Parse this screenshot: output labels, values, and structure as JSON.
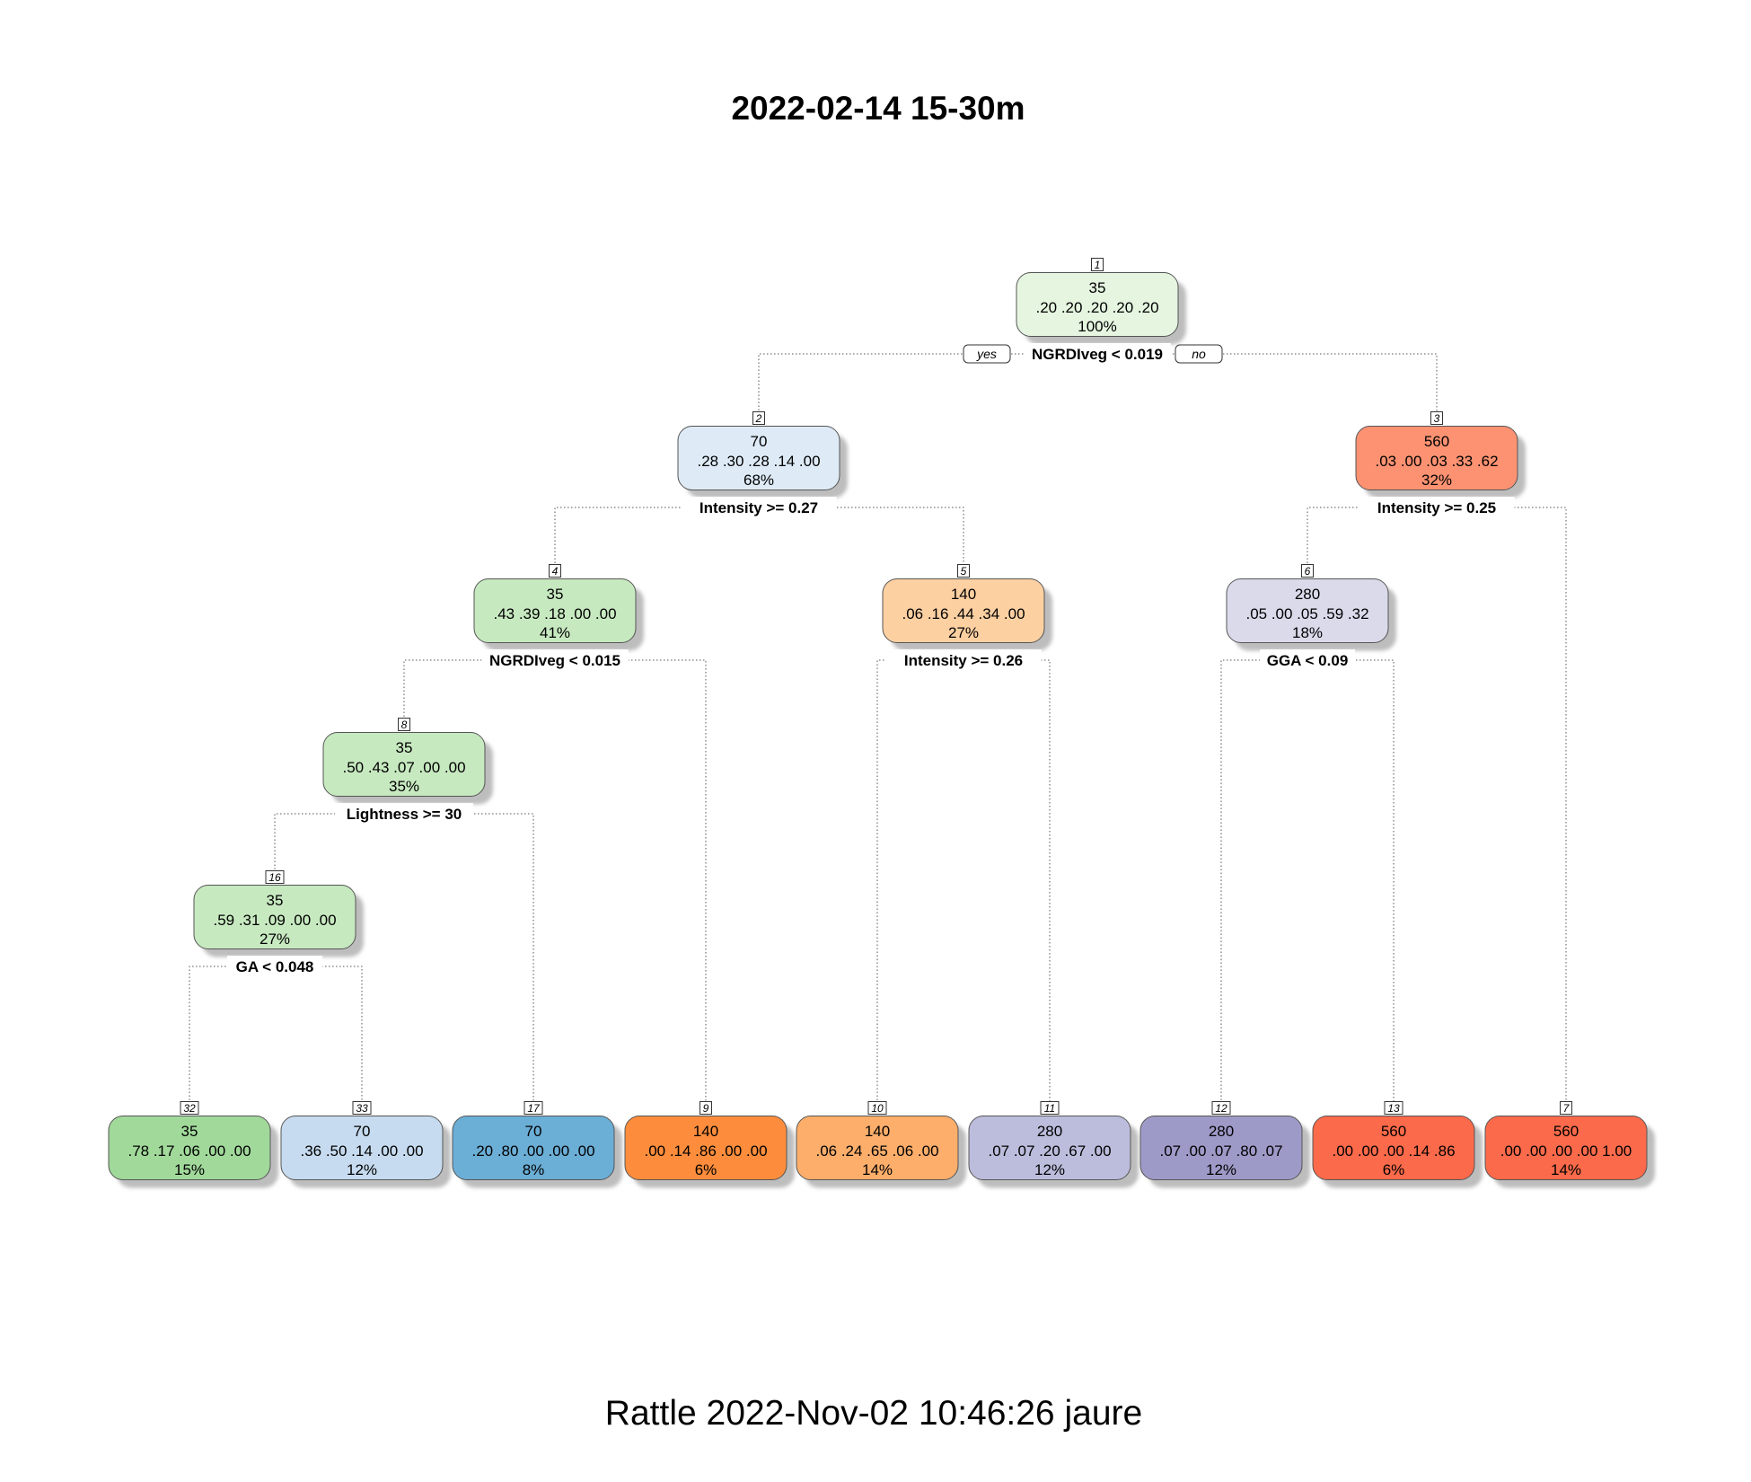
{
  "title": "2022-02-14 15-30m",
  "footer": "Rattle 2022-Nov-02 10:46:26 jaure",
  "branch_labels": {
    "yes": "yes",
    "no": "no"
  },
  "nodes": [
    {
      "id": "1",
      "cls": "35",
      "probs": ".20  .20  .20  .20  .20",
      "pct": "100%",
      "split": "NGRDIveg < 0.019",
      "color": "#e5f5e0"
    },
    {
      "id": "2",
      "cls": "70",
      "probs": ".28  .30  .28  .14  .00",
      "pct": "68%",
      "split": "Intensity >= 0.27",
      "color": "#deebf7"
    },
    {
      "id": "3",
      "cls": "560",
      "probs": ".03  .00  .03  .33  .62",
      "pct": "32%",
      "split": "Intensity >= 0.25",
      "color": "#fc9272"
    },
    {
      "id": "4",
      "cls": "35",
      "probs": ".43  .39  .18  .00  .00",
      "pct": "41%",
      "split": "NGRDIveg < 0.015",
      "color": "#c7e9c0"
    },
    {
      "id": "5",
      "cls": "140",
      "probs": ".06  .16  .44  .34  .00",
      "pct": "27%",
      "split": "Intensity >= 0.26",
      "color": "#fdd0a2"
    },
    {
      "id": "6",
      "cls": "280",
      "probs": ".05  .00  .05  .59  .32",
      "pct": "18%",
      "split": "GGA < 0.09",
      "color": "#dadaeb"
    },
    {
      "id": "8",
      "cls": "35",
      "probs": ".50  .43  .07  .00  .00",
      "pct": "35%",
      "split": "Lightness >= 30",
      "color": "#c7e9c0"
    },
    {
      "id": "16",
      "cls": "35",
      "probs": ".59  .31  .09  .00  .00",
      "pct": "27%",
      "split": "GA < 0.048",
      "color": "#c7e9c0"
    },
    {
      "id": "32",
      "cls": "35",
      "probs": ".78  .17  .06  .00  .00",
      "pct": "15%",
      "split": "",
      "color": "#a1d99b"
    },
    {
      "id": "33",
      "cls": "70",
      "probs": ".36  .50  .14  .00  .00",
      "pct": "12%",
      "split": "",
      "color": "#c6dbef"
    },
    {
      "id": "17",
      "cls": "70",
      "probs": ".20  .80  .00  .00  .00",
      "pct": "8%",
      "split": "",
      "color": "#6baed6"
    },
    {
      "id": "9",
      "cls": "140",
      "probs": ".00  .14  .86  .00  .00",
      "pct": "6%",
      "split": "",
      "color": "#fd8d3c"
    },
    {
      "id": "10",
      "cls": "140",
      "probs": ".06  .24  .65  .06  .00",
      "pct": "14%",
      "split": "",
      "color": "#fdae6b"
    },
    {
      "id": "11",
      "cls": "280",
      "probs": ".07  .07  .20  .67  .00",
      "pct": "12%",
      "split": "",
      "color": "#bcbddc"
    },
    {
      "id": "12",
      "cls": "280",
      "probs": ".07  .00  .07  .80  .07",
      "pct": "12%",
      "split": "",
      "color": "#9e9ac8"
    },
    {
      "id": "13",
      "cls": "560",
      "probs": ".00  .00  .00  .14  .86",
      "pct": "6%",
      "split": "",
      "color": "#fb6a4a"
    },
    {
      "id": "7",
      "cls": "560",
      "probs": ".00  .00  .00  .00  1.00",
      "pct": "14%",
      "split": "",
      "color": "#fb6a4a"
    }
  ]
}
